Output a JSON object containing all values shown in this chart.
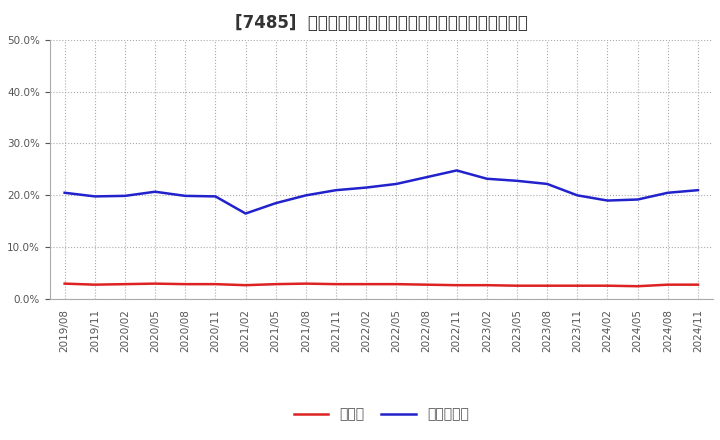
{
  "title": "[7485]  現預金、有利子負債の総資産に対する比率の推移",
  "x_labels": [
    "2019/08",
    "2019/11",
    "2020/02",
    "2020/05",
    "2020/08",
    "2020/11",
    "2021/02",
    "2021/05",
    "2021/08",
    "2021/11",
    "2022/02",
    "2022/05",
    "2022/08",
    "2022/11",
    "2023/02",
    "2023/05",
    "2023/08",
    "2023/11",
    "2024/02",
    "2024/05",
    "2024/08",
    "2024/11"
  ],
  "cash": [
    0.03,
    0.028,
    0.029,
    0.03,
    0.029,
    0.029,
    0.027,
    0.029,
    0.03,
    0.029,
    0.029,
    0.029,
    0.028,
    0.027,
    0.027,
    0.026,
    0.026,
    0.026,
    0.026,
    0.025,
    0.028,
    0.028
  ],
  "debt": [
    0.205,
    0.198,
    0.199,
    0.207,
    0.199,
    0.198,
    0.165,
    0.185,
    0.2,
    0.21,
    0.215,
    0.222,
    0.235,
    0.248,
    0.232,
    0.228,
    0.222,
    0.2,
    0.19,
    0.192,
    0.205,
    0.21
  ],
  "cash_color": "#dd2222",
  "debt_color": "#2222cc",
  "bg_color": "#ffffff",
  "plot_bg_color": "#ffffff",
  "grid_color": "#aaaaaa",
  "ylim": [
    0.0,
    0.5
  ],
  "yticks": [
    0.0,
    0.1,
    0.2,
    0.3,
    0.4,
    0.5
  ],
  "legend_cash": "現預金",
  "legend_debt": "有利子負債",
  "title_fontsize": 12,
  "tick_fontsize": 7.5,
  "legend_fontsize": 10
}
